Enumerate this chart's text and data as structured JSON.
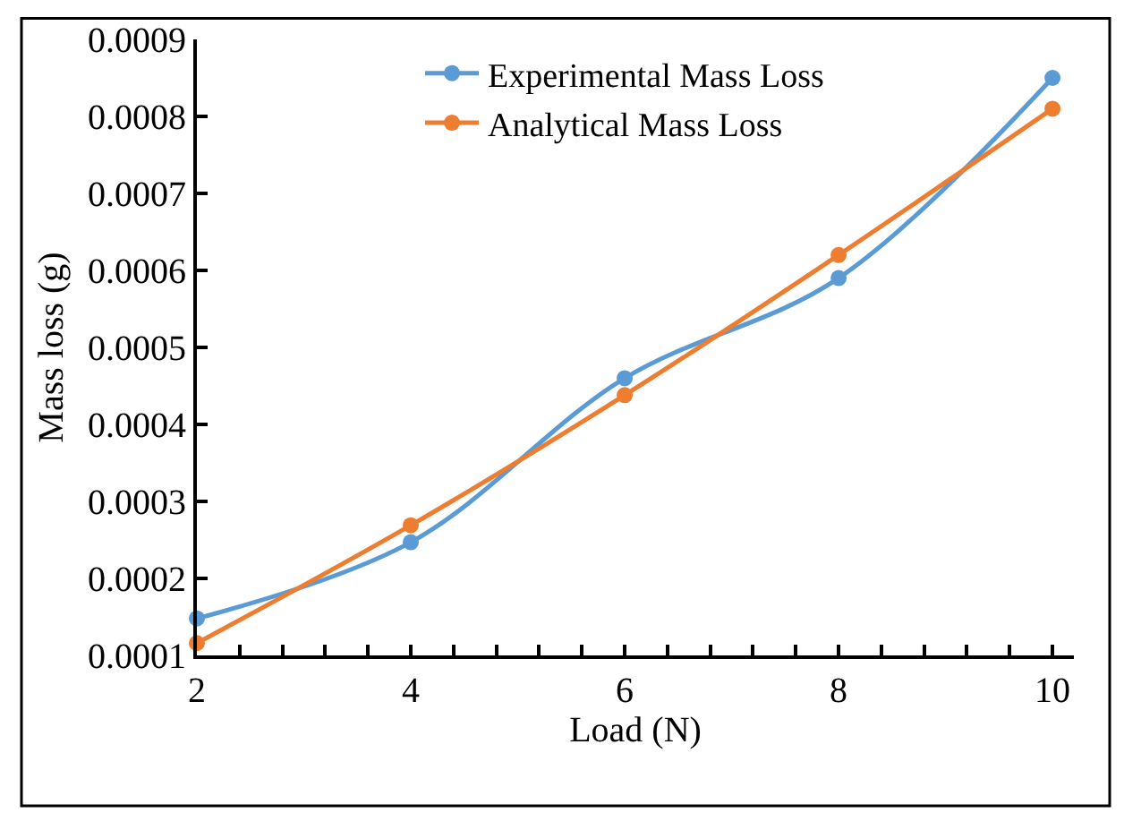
{
  "chart_data": {
    "type": "line",
    "xlabel": "Load (N)",
    "ylabel": "Mass loss (g)",
    "x": [
      2,
      4,
      6,
      8,
      10
    ],
    "series": [
      {
        "name": "Experimental Mass Loss",
        "color": "#5b9bd5",
        "values": [
          0.000148,
          0.000247,
          0.00046,
          0.00059,
          0.00085
        ]
      },
      {
        "name": "Analytical Mass Loss",
        "color": "#ed7d31",
        "values": [
          0.000116,
          0.000269,
          0.000438,
          0.00062,
          0.00081
        ]
      }
    ],
    "xlim": [
      2,
      10.2
    ],
    "xticks": [
      2,
      {
        "value": 2.4,
        "label": null
      },
      {
        "value": 2.8,
        "label": null
      },
      {
        "value": 3.2,
        "label": null
      },
      {
        "value": 3.6,
        "label": null
      },
      4,
      {
        "value": 4.4,
        "label": null
      },
      {
        "value": 4.8,
        "label": null
      },
      {
        "value": 5.2,
        "label": null
      },
      {
        "value": 5.6,
        "label": null
      },
      6,
      {
        "value": 6.4,
        "label": null
      },
      {
        "value": 6.8,
        "label": null
      },
      {
        "value": 7.2,
        "label": null
      },
      {
        "value": 7.6,
        "label": null
      },
      8,
      {
        "value": 8.4,
        "label": null
      },
      {
        "value": 8.8,
        "label": null
      },
      {
        "value": 9.2,
        "label": null
      },
      {
        "value": 9.6,
        "label": null
      },
      10
    ],
    "ylim": [
      0.0001,
      0.0009
    ],
    "yticks": [
      0.0001,
      0.0002,
      0.0003,
      0.0004,
      0.0005,
      0.0006,
      0.0007,
      0.0008,
      0.0009
    ],
    "legend": "top",
    "marker": "circle",
    "line_style": "solid"
  }
}
